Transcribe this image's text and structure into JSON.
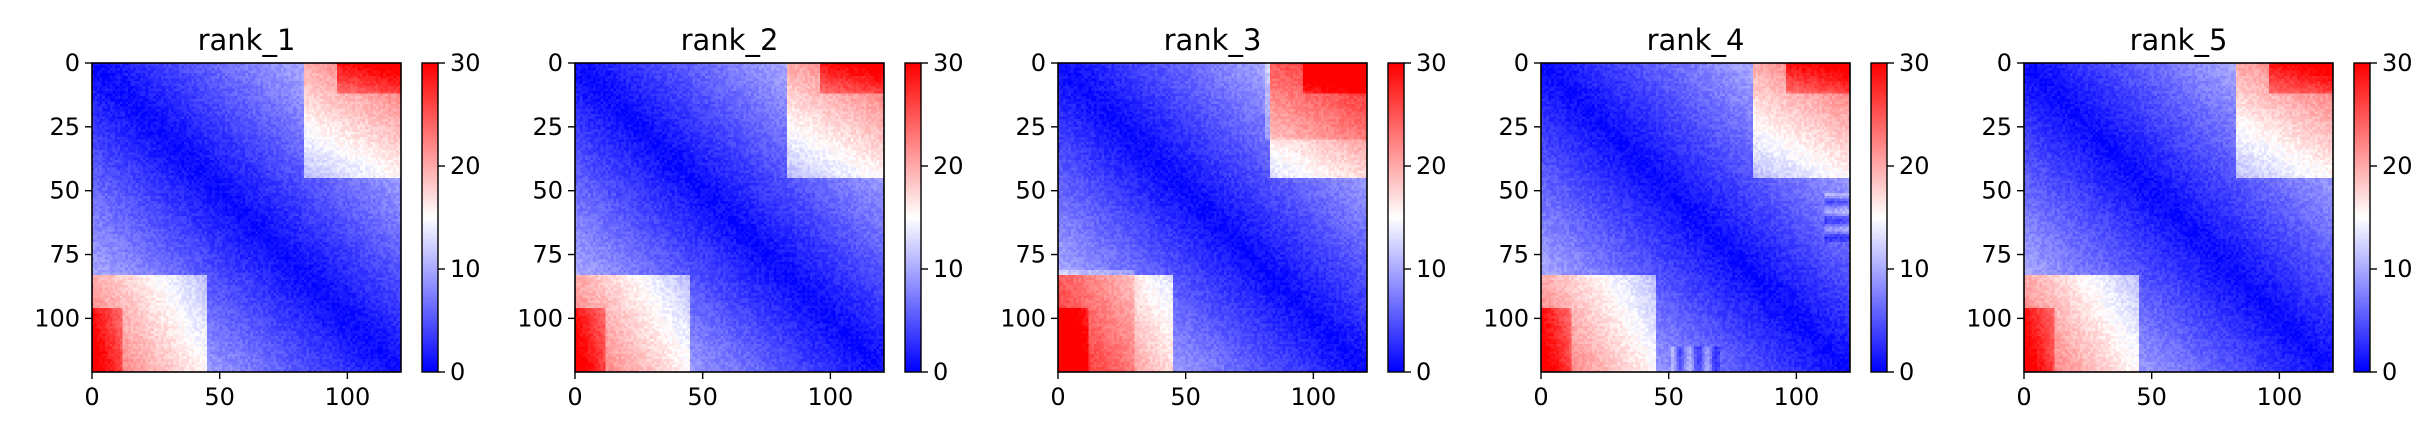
{
  "chart_data": [
    {
      "type": "heatmap",
      "title": "rank_1",
      "variant": 1,
      "xlim": [
        0,
        121
      ],
      "ylim": [
        121,
        0
      ],
      "xticks": [
        0,
        50,
        100
      ],
      "yticks": [
        0,
        25,
        50,
        75,
        100
      ],
      "xtick_labels": [
        "0",
        "50",
        "100"
      ],
      "ytick_labels": [
        "0",
        "25",
        "50",
        "75",
        "100"
      ],
      "colorbar": {
        "range": [
          0,
          30
        ],
        "ticks": [
          0,
          10,
          20,
          30
        ],
        "tick_labels": [
          "0",
          "10",
          "20",
          "30"
        ],
        "colormap": "bwr"
      }
    },
    {
      "type": "heatmap",
      "title": "rank_2",
      "variant": 2,
      "xlim": [
        0,
        121
      ],
      "ylim": [
        121,
        0
      ],
      "xticks": [
        0,
        50,
        100
      ],
      "yticks": [
        0,
        25,
        50,
        75,
        100
      ],
      "xtick_labels": [
        "0",
        "50",
        "100"
      ],
      "ytick_labels": [
        "0",
        "25",
        "50",
        "75",
        "100"
      ],
      "colorbar": {
        "range": [
          0,
          30
        ],
        "ticks": [
          0,
          10,
          20,
          30
        ],
        "tick_labels": [
          "0",
          "10",
          "20",
          "30"
        ],
        "colormap": "bwr"
      }
    },
    {
      "type": "heatmap",
      "title": "rank_3",
      "variant": 3,
      "xlim": [
        0,
        121
      ],
      "ylim": [
        121,
        0
      ],
      "xticks": [
        0,
        50,
        100
      ],
      "yticks": [
        0,
        25,
        50,
        75,
        100
      ],
      "xtick_labels": [
        "0",
        "50",
        "100"
      ],
      "ytick_labels": [
        "0",
        "25",
        "50",
        "75",
        "100"
      ],
      "colorbar": {
        "range": [
          0,
          30
        ],
        "ticks": [
          0,
          10,
          20,
          30
        ],
        "tick_labels": [
          "0",
          "10",
          "20",
          "30"
        ],
        "colormap": "bwr"
      }
    },
    {
      "type": "heatmap",
      "title": "rank_4",
      "variant": 4,
      "xlim": [
        0,
        121
      ],
      "ylim": [
        121,
        0
      ],
      "xticks": [
        0,
        50,
        100
      ],
      "yticks": [
        0,
        25,
        50,
        75,
        100
      ],
      "xtick_labels": [
        "0",
        "50",
        "100"
      ],
      "ytick_labels": [
        "0",
        "25",
        "50",
        "75",
        "100"
      ],
      "colorbar": {
        "range": [
          0,
          30
        ],
        "ticks": [
          0,
          10,
          20,
          30
        ],
        "tick_labels": [
          "0",
          "10",
          "20",
          "30"
        ],
        "colormap": "bwr"
      }
    },
    {
      "type": "heatmap",
      "title": "rank_5",
      "variant": 5,
      "xlim": [
        0,
        121
      ],
      "ylim": [
        121,
        0
      ],
      "xticks": [
        0,
        50,
        100
      ],
      "yticks": [
        0,
        25,
        50,
        75,
        100
      ],
      "xtick_labels": [
        "0",
        "50",
        "100"
      ],
      "ytick_labels": [
        "0",
        "25",
        "50",
        "75",
        "100"
      ],
      "colorbar": {
        "range": [
          0,
          30
        ],
        "ticks": [
          0,
          10,
          20,
          30
        ],
        "tick_labels": [
          "0",
          "10",
          "20",
          "30"
        ],
        "colormap": "bwr"
      }
    }
  ]
}
